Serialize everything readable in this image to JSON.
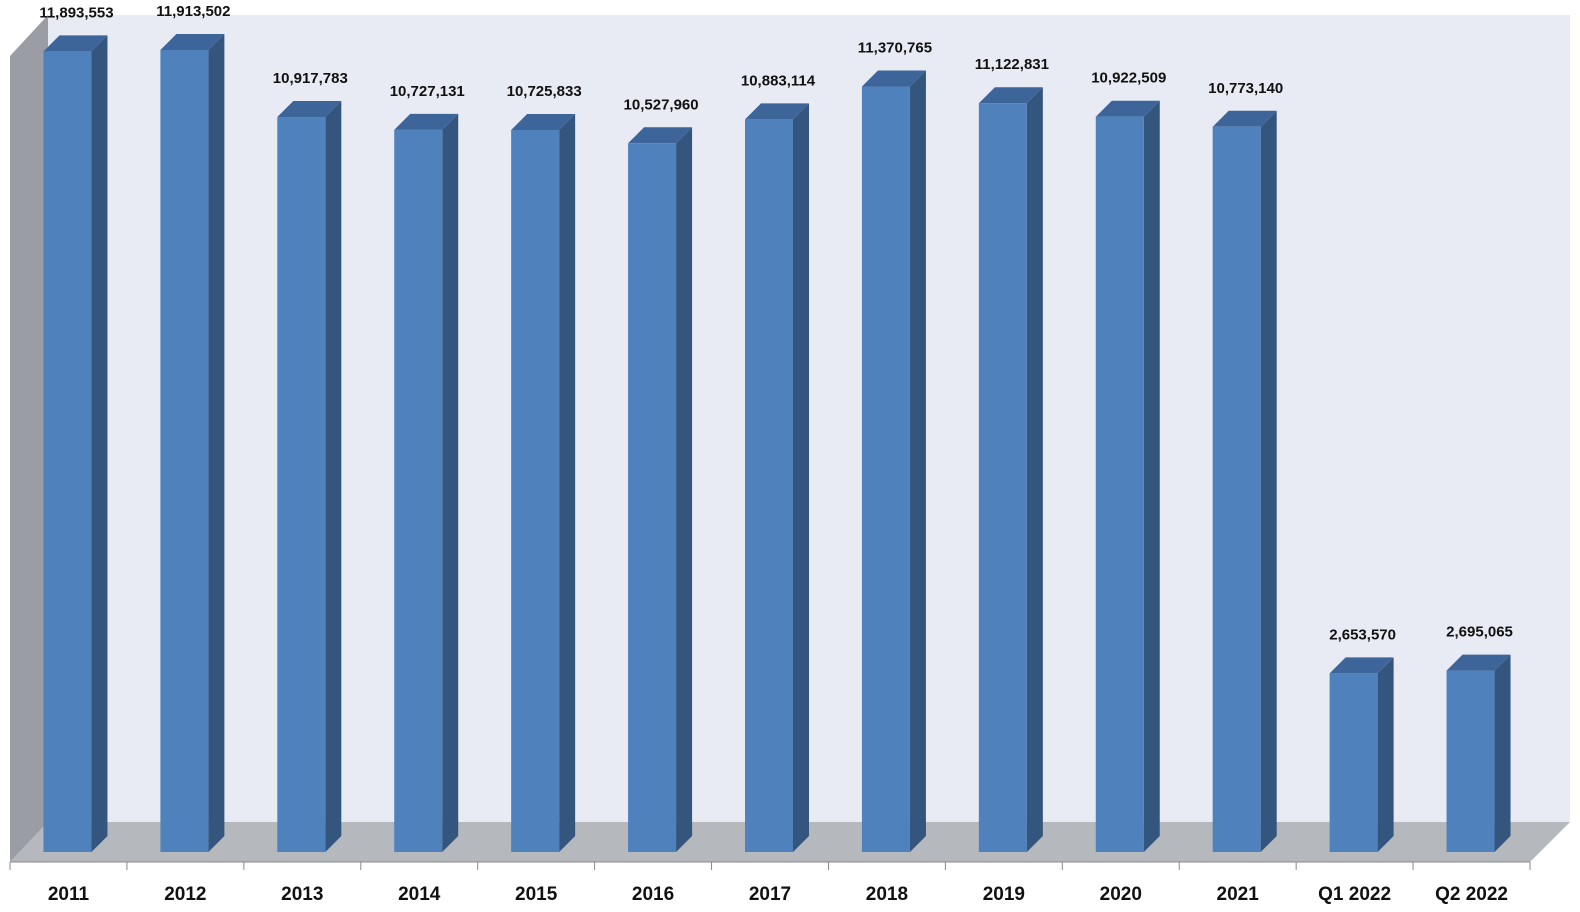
{
  "chart_data": {
    "type": "bar",
    "style": "3d-column",
    "categories": [
      "2011",
      "2012",
      "2013",
      "2014",
      "2015",
      "2016",
      "2017",
      "2018",
      "2019",
      "2020",
      "2021",
      "Q1 2022",
      "Q2 2022"
    ],
    "values": [
      11893553,
      11913502,
      10917783,
      10727131,
      10725833,
      10527960,
      10883114,
      11370765,
      11122831,
      10922509,
      10773140,
      2653570,
      2695065
    ],
    "labels": [
      "11,893,553",
      "11,913,502",
      "10,917,783",
      "10,727,131",
      "10,725,833",
      "10,527,960",
      "10,883,114",
      "11,370,765",
      "11,122,831",
      "10,922,509",
      "10,773,140",
      "2,653,570",
      "2,695,065"
    ],
    "ylim": [
      0,
      11913502
    ],
    "grid": false,
    "legend": "none",
    "colors": {
      "bar_front": "#4f81bd",
      "bar_side": "#34557d",
      "bar_top": "#3d659a",
      "back_wall": "#e8ebf4",
      "side_wall": "#9a9da3",
      "floor": "#b5b8bd",
      "axis": "#888888"
    }
  }
}
